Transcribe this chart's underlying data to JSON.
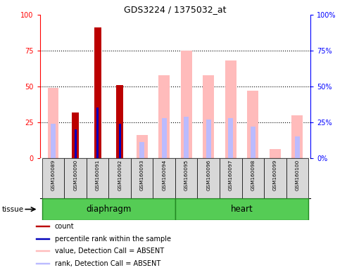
{
  "title": "GDS3224 / 1375032_at",
  "samples": [
    "GSM160089",
    "GSM160090",
    "GSM160091",
    "GSM160092",
    "GSM160093",
    "GSM160094",
    "GSM160095",
    "GSM160096",
    "GSM160097",
    "GSM160098",
    "GSM160099",
    "GSM160100"
  ],
  "groups": [
    {
      "label": "diaphragm",
      "indices": [
        0,
        1,
        2,
        3,
        4,
        5
      ],
      "color": "#55cc55"
    },
    {
      "label": "heart",
      "indices": [
        6,
        7,
        8,
        9,
        10,
        11
      ],
      "color": "#55cc55"
    }
  ],
  "count_values": [
    0,
    32,
    91,
    51,
    0,
    0,
    0,
    0,
    0,
    0,
    0,
    0
  ],
  "rank_values": [
    0,
    20,
    35,
    24,
    0,
    0,
    0,
    0,
    0,
    0,
    0,
    0
  ],
  "absent_value_values": [
    49,
    0,
    0,
    0,
    16,
    58,
    75,
    58,
    68,
    47,
    6,
    30
  ],
  "absent_rank_values": [
    24,
    0,
    0,
    0,
    11,
    28,
    29,
    27,
    28,
    22,
    0,
    15
  ],
  "count_color": "#bb0000",
  "rank_color": "#0000bb",
  "absent_value_color": "#ffbbbb",
  "absent_rank_color": "#bbbbff",
  "ylim": [
    0,
    100
  ],
  "tissue_label": "tissue",
  "legend_items": [
    {
      "label": "count",
      "color": "#bb0000"
    },
    {
      "label": "percentile rank within the sample",
      "color": "#0000bb"
    },
    {
      "label": "value, Detection Call = ABSENT",
      "color": "#ffbbbb"
    },
    {
      "label": "rank, Detection Call = ABSENT",
      "color": "#bbbbff"
    }
  ],
  "left_yticks": [
    0,
    25,
    50,
    75,
    100
  ],
  "right_ytick_labels": [
    "0%",
    "25%",
    "50%",
    "75%",
    "100%"
  ]
}
